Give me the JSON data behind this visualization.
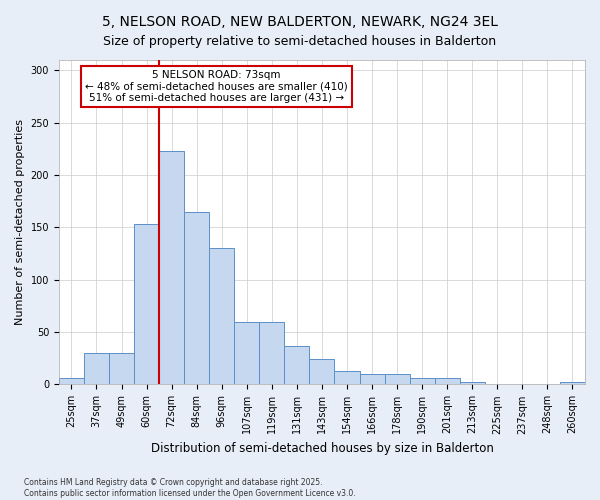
{
  "title": "5, NELSON ROAD, NEW BALDERTON, NEWARK, NG24 3EL",
  "subtitle": "Size of property relative to semi-detached houses in Balderton",
  "xlabel": "Distribution of semi-detached houses by size in Balderton",
  "ylabel": "Number of semi-detached properties",
  "categories": [
    "25sqm",
    "37sqm",
    "49sqm",
    "60sqm",
    "72sqm",
    "84sqm",
    "96sqm",
    "107sqm",
    "119sqm",
    "131sqm",
    "143sqm",
    "154sqm",
    "166sqm",
    "178sqm",
    "190sqm",
    "201sqm",
    "213sqm",
    "225sqm",
    "237sqm",
    "248sqm",
    "260sqm"
  ],
  "values": [
    6,
    30,
    30,
    153,
    223,
    165,
    130,
    60,
    60,
    37,
    24,
    13,
    10,
    10,
    6,
    6,
    2,
    0,
    0,
    0,
    2
  ],
  "bar_color": "#c5d8f0",
  "bar_edge_color": "#5b8fc9",
  "line_x_index": 4,
  "line_color": "#cc0000",
  "annotation_title": "5 NELSON ROAD: 73sqm",
  "annotation_line1": "← 48% of semi-detached houses are smaller (410)",
  "annotation_line2": "51% of semi-detached houses are larger (431) →",
  "annotation_box_color": "white",
  "annotation_box_edge_color": "#cc0000",
  "ylim": [
    0,
    310
  ],
  "yticks": [
    0,
    50,
    100,
    150,
    200,
    250,
    300
  ],
  "footer1": "Contains HM Land Registry data © Crown copyright and database right 2025.",
  "footer2": "Contains public sector information licensed under the Open Government Licence v3.0.",
  "bg_color": "#e8eef8",
  "plot_bg_color": "white",
  "title_fontsize": 10,
  "subtitle_fontsize": 9,
  "tick_fontsize": 7,
  "ylabel_fontsize": 8,
  "xlabel_fontsize": 8.5,
  "footer_fontsize": 5.5,
  "annotation_fontsize": 7.5
}
